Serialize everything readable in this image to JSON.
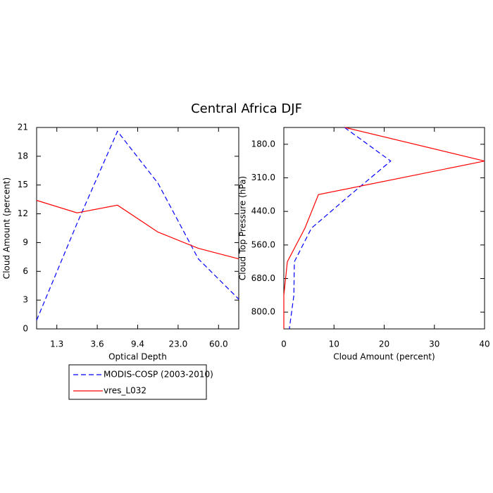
{
  "title": "Central Africa DJF",
  "legend": "below",
  "chart_data": [
    {
      "type": "line",
      "xlabel": "Optical Depth",
      "ylabel": "Cloud Amount (percent)",
      "x": [
        0,
        1,
        2,
        3,
        4,
        5
      ],
      "xlim": [
        0,
        5
      ],
      "xticks": [
        {
          "value": 0.5,
          "label": "1.3"
        },
        {
          "value": 1.5,
          "label": "3.6"
        },
        {
          "value": 2.5,
          "label": "9.4"
        },
        {
          "value": 3.5,
          "label": "23.0"
        },
        {
          "value": 4.5,
          "label": "60.0"
        }
      ],
      "ylim": [
        0,
        21
      ],
      "yticks": [
        0,
        3,
        6,
        9,
        12,
        15,
        18,
        21
      ],
      "series": [
        {
          "name": "MODIS-COSP (2003-2010)",
          "color": "#0000ff",
          "linestyle": "dashed",
          "values": [
            0.9,
            11.0,
            20.6,
            15.2,
            7.3,
            3.1
          ]
        },
        {
          "name": "vres_L032",
          "color": "#ff0000",
          "linestyle": "solid",
          "values": [
            13.4,
            12.1,
            12.9,
            10.1,
            8.4,
            7.3
          ]
        }
      ]
    },
    {
      "type": "line",
      "orientation": "horizontal",
      "xlabel": "Cloud Amount (percent)",
      "ylabel": "Cloud Top Pressure (hPa)",
      "y": [
        0,
        1,
        2,
        3,
        4,
        5,
        6
      ],
      "ylim": [
        0,
        6
      ],
      "y_reversed": true,
      "yticks": [
        {
          "value": 0.5,
          "label": "180.0"
        },
        {
          "value": 1.5,
          "label": "310.0"
        },
        {
          "value": 2.5,
          "label": "440.0"
        },
        {
          "value": 3.5,
          "label": "560.0"
        },
        {
          "value": 4.5,
          "label": "680.0"
        },
        {
          "value": 5.5,
          "label": "800.0"
        }
      ],
      "xlim": [
        0,
        40
      ],
      "xticks": [
        0,
        10,
        20,
        30,
        40
      ],
      "series": [
        {
          "color": "#0000ff",
          "linestyle": "dashed",
          "values": [
            12.1,
            21.3,
            13.3,
            5.5,
            2.1,
            2.0,
            1.1
          ]
        },
        {
          "color": "#ff0000",
          "linestyle": "solid",
          "values": [
            12.2,
            40,
            6.9,
            4.2,
            0.7,
            0,
            0
          ]
        }
      ]
    }
  ]
}
